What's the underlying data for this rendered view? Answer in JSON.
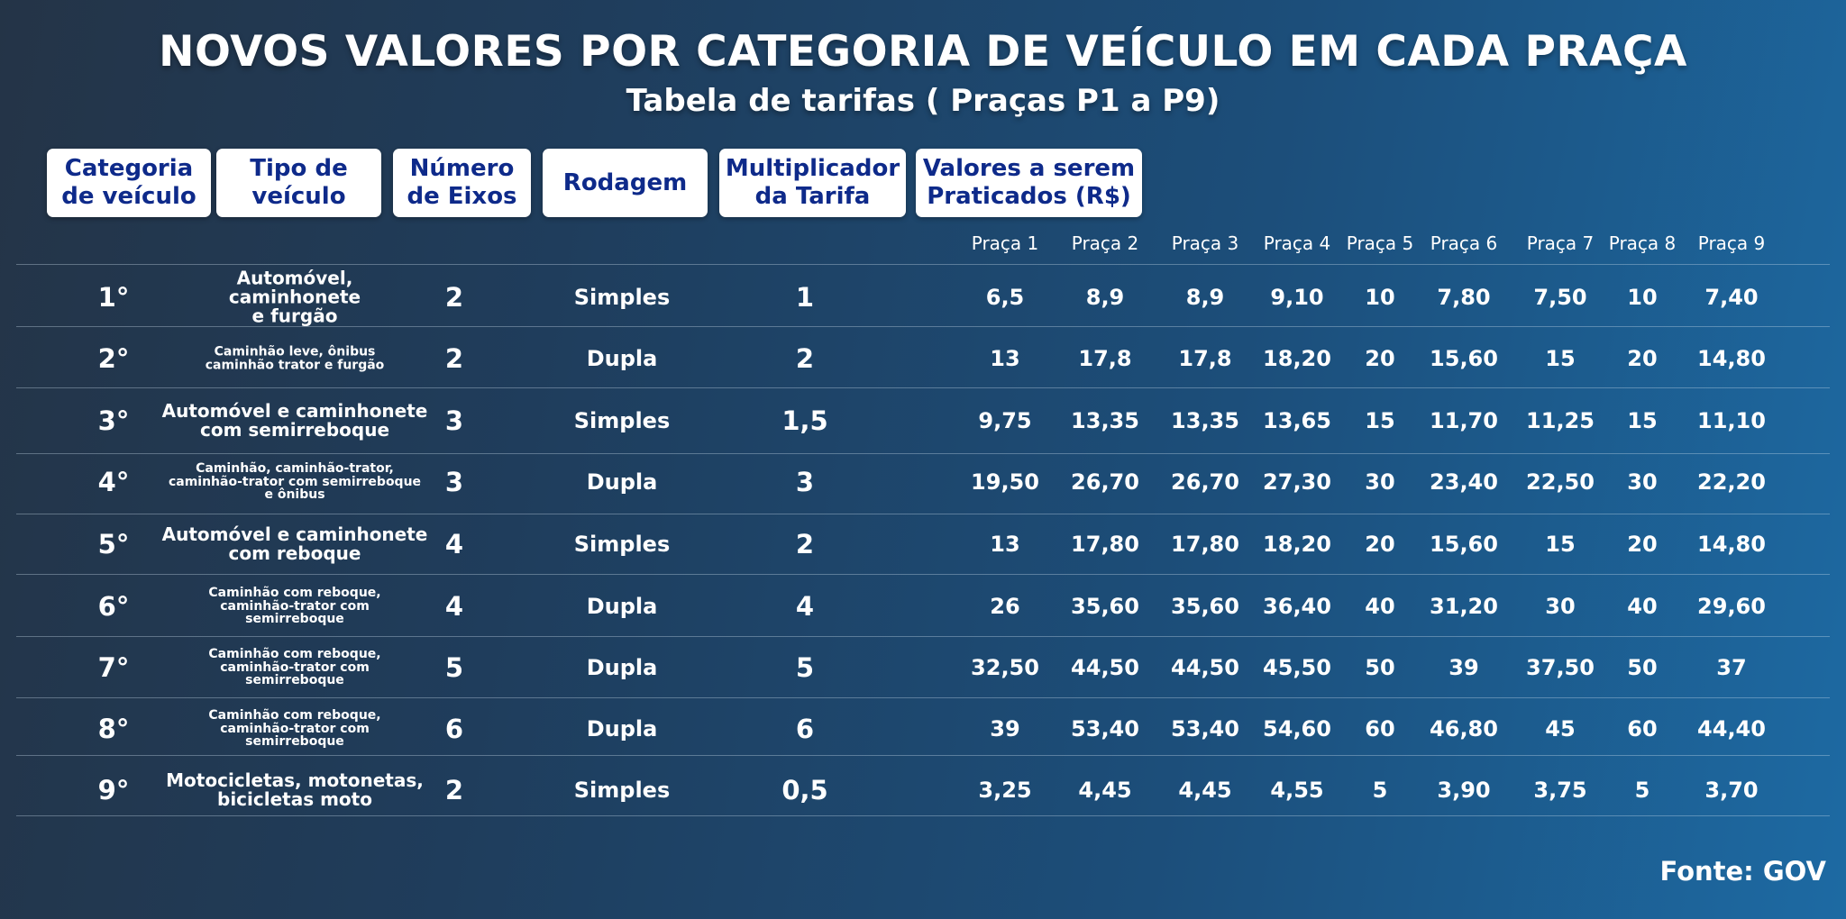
{
  "title": "NOVOS VALORES POR CATEGORIA DE VEÍCULO EM CADA PRAÇA",
  "subtitle": "Tabela de tarifas ( Praças P1 a P9)",
  "headers": {
    "categoria": "Categoria\nde veículo",
    "tipo": "Tipo de\nveículo",
    "eixos": "Número\nde Eixos",
    "rodagem": "Rodagem",
    "multiplicador": "Multiplicador\nda Tarifa",
    "valores": "Valores a serem\nPraticados (R$)"
  },
  "pracas": [
    "Praça 1",
    "Praça 2",
    "Praça 3",
    "Praça 4",
    "Praça 5",
    "Praça 6",
    "Praça 7",
    "Praça 8",
    "Praça 9"
  ],
  "chart_data": {
    "type": "table",
    "title": "NOVOS VALORES POR CATEGORIA DE VEÍCULO EM CADA PRAÇA",
    "subtitle": "Tabela de tarifas ( Praças P1 a P9)",
    "columns": [
      "Categoria de veículo",
      "Tipo de veículo",
      "Número de Eixos",
      "Rodagem",
      "Multiplicador da Tarifa",
      "Praça 1",
      "Praça 2",
      "Praça 3",
      "Praça 4",
      "Praça 5",
      "Praça 6",
      "Praça 7",
      "Praça 8",
      "Praça 9"
    ],
    "rows": [
      {
        "categoria": "1°",
        "tipo": "Automóvel,\ncaminhonete\ne furgão",
        "eixos": "2",
        "rodagem": "Simples",
        "multiplicador": "1",
        "valores": [
          "6,5",
          "8,9",
          "8,9",
          "9,10",
          "10",
          "7,80",
          "7,50",
          "10",
          "7,40"
        ]
      },
      {
        "categoria": "2°",
        "tipo": "Caminhão leve, ônibus\ncaminhão trator e furgão",
        "eixos": "2",
        "rodagem": "Dupla",
        "multiplicador": "2",
        "valores": [
          "13",
          "17,8",
          "17,8",
          "18,20",
          "20",
          "15,60",
          "15",
          "20",
          "14,80"
        ]
      },
      {
        "categoria": "3°",
        "tipo": "Automóvel e caminhonete\ncom semirreboque",
        "eixos": "3",
        "rodagem": "Simples",
        "multiplicador": "1,5",
        "valores": [
          "9,75",
          "13,35",
          "13,35",
          "13,65",
          "15",
          "11,70",
          "11,25",
          "15",
          "11,10"
        ]
      },
      {
        "categoria": "4°",
        "tipo": "Caminhão, caminhão-trator,\ncaminhão-trator com semirreboque\ne ônibus",
        "eixos": "3",
        "rodagem": "Dupla",
        "multiplicador": "3",
        "valores": [
          "19,50",
          "26,70",
          "26,70",
          "27,30",
          "30",
          "23,40",
          "22,50",
          "30",
          "22,20"
        ]
      },
      {
        "categoria": "5°",
        "tipo": "Automóvel e caminhonete\ncom reboque",
        "eixos": "4",
        "rodagem": "Simples",
        "multiplicador": "2",
        "valores": [
          "13",
          "17,80",
          "17,80",
          "18,20",
          "20",
          "15,60",
          "15",
          "20",
          "14,80"
        ]
      },
      {
        "categoria": "6°",
        "tipo": "Caminhão com reboque,\ncaminhão-trator com\nsemirreboque",
        "eixos": "4",
        "rodagem": "Dupla",
        "multiplicador": "4",
        "valores": [
          "26",
          "35,60",
          "35,60",
          "36,40",
          "40",
          "31,20",
          "30",
          "40",
          "29,60"
        ]
      },
      {
        "categoria": "7°",
        "tipo": "Caminhão com reboque,\ncaminhão-trator com\nsemirreboque",
        "eixos": "5",
        "rodagem": "Dupla",
        "multiplicador": "5",
        "valores": [
          "32,50",
          "44,50",
          "44,50",
          "45,50",
          "50",
          "39",
          "37,50",
          "50",
          "37"
        ]
      },
      {
        "categoria": "8°",
        "tipo": "Caminhão com reboque,\ncaminhão-trator com\nsemirreboque",
        "eixos": "6",
        "rodagem": "Dupla",
        "multiplicador": "6",
        "valores": [
          "39",
          "53,40",
          "53,40",
          "54,60",
          "60",
          "46,80",
          "45",
          "60",
          "44,40"
        ]
      },
      {
        "categoria": "9°",
        "tipo": "Motocicletas, motonetas,\nbicicletas moto",
        "eixos": "2",
        "rodagem": "Simples",
        "multiplicador": "0,5",
        "valores": [
          "3,25",
          "4,45",
          "4,45",
          "4,55",
          "5",
          "3,90",
          "3,75",
          "5",
          "3,70"
        ]
      }
    ]
  },
  "fonte": "Fonte: GOV"
}
